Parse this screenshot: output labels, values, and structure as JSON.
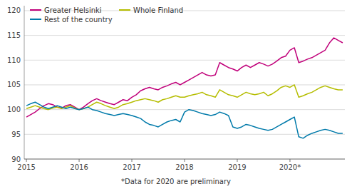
{
  "chart_data": {
    "type": "line",
    "footnote": "*Data for 2020 are preliminary",
    "categories": [
      "2015",
      null,
      null,
      null,
      null,
      null,
      null,
      null,
      null,
      null,
      null,
      null,
      "2016",
      null,
      null,
      null,
      null,
      null,
      null,
      null,
      null,
      null,
      null,
      null,
      "2017",
      null,
      null,
      null,
      null,
      null,
      null,
      null,
      null,
      null,
      null,
      null,
      "2018",
      null,
      null,
      null,
      null,
      null,
      null,
      null,
      null,
      null,
      null,
      null,
      "2019",
      null,
      null,
      null,
      null,
      null,
      null,
      null,
      null,
      null,
      null,
      null,
      "2020*",
      null,
      null,
      null,
      null,
      null,
      null,
      null,
      null,
      null,
      null,
      null,
      null
    ],
    "series": [
      {
        "name": "Greater Helsinki",
        "color": "#c0007a",
        "values": [
          98.5,
          99.0,
          99.5,
          100.2,
          100.8,
          101.2,
          101.0,
          100.5,
          100.3,
          100.8,
          101.0,
          100.5,
          100.0,
          100.5,
          101.2,
          101.8,
          102.2,
          101.8,
          101.5,
          101.2,
          101.0,
          101.5,
          102.0,
          101.8,
          102.5,
          103.0,
          103.8,
          104.2,
          104.5,
          104.2,
          104.0,
          104.5,
          104.8,
          105.2,
          105.5,
          105.0,
          105.5,
          106.0,
          106.5,
          107.0,
          107.5,
          107.0,
          106.8,
          107.0,
          109.5,
          109.0,
          108.5,
          108.2,
          107.8,
          108.5,
          109.0,
          108.5,
          109.0,
          109.5,
          109.2,
          108.8,
          109.2,
          109.8,
          110.5,
          110.8,
          112.0,
          112.5,
          109.5,
          109.8,
          110.2,
          110.5,
          111.0,
          111.5,
          112.0,
          113.5,
          114.5,
          114.0,
          113.5
        ]
      },
      {
        "name": "Whole Finland",
        "color": "#b5bd00",
        "values": [
          100.2,
          100.5,
          100.8,
          100.5,
          100.2,
          100.0,
          100.3,
          100.5,
          100.2,
          100.5,
          100.8,
          100.3,
          100.0,
          100.2,
          100.5,
          101.0,
          101.5,
          101.2,
          100.8,
          100.5,
          100.2,
          100.5,
          101.0,
          101.2,
          101.5,
          101.8,
          102.0,
          102.2,
          102.0,
          101.8,
          101.5,
          102.0,
          102.2,
          102.5,
          102.8,
          102.5,
          102.5,
          102.8,
          103.0,
          103.2,
          103.5,
          103.0,
          102.8,
          102.5,
          104.0,
          103.5,
          103.0,
          102.8,
          102.5,
          103.0,
          103.5,
          103.2,
          103.0,
          103.2,
          103.5,
          102.8,
          103.2,
          103.8,
          104.5,
          104.8,
          104.5,
          105.0,
          102.5,
          102.8,
          103.2,
          103.5,
          104.0,
          104.5,
          104.8,
          104.5,
          104.2,
          104.0,
          104.0
        ]
      },
      {
        "name": "Rest of the country",
        "color": "#007aaa",
        "values": [
          100.8,
          101.2,
          101.5,
          101.0,
          100.5,
          100.2,
          100.5,
          100.8,
          100.5,
          100.2,
          100.5,
          100.2,
          100.0,
          100.2,
          100.5,
          100.0,
          99.8,
          99.5,
          99.2,
          99.0,
          98.8,
          99.0,
          99.2,
          99.0,
          98.8,
          98.5,
          98.2,
          97.5,
          97.0,
          96.8,
          96.5,
          97.0,
          97.5,
          97.8,
          98.0,
          97.5,
          99.5,
          100.0,
          99.8,
          99.5,
          99.2,
          99.0,
          98.8,
          99.0,
          99.5,
          99.2,
          98.8,
          96.5,
          96.2,
          96.5,
          97.0,
          96.8,
          96.5,
          96.2,
          96.0,
          95.8,
          96.0,
          96.5,
          97.0,
          97.5,
          98.0,
          98.5,
          94.5,
          94.2,
          94.8,
          95.2,
          95.5,
          95.8,
          96.0,
          95.8,
          95.5,
          95.2,
          95.2
        ]
      }
    ],
    "ylim": [
      90,
      121
    ],
    "yticks": [
      90,
      95,
      100,
      105,
      110,
      115,
      120
    ],
    "grid": true,
    "legend": "upper left"
  }
}
